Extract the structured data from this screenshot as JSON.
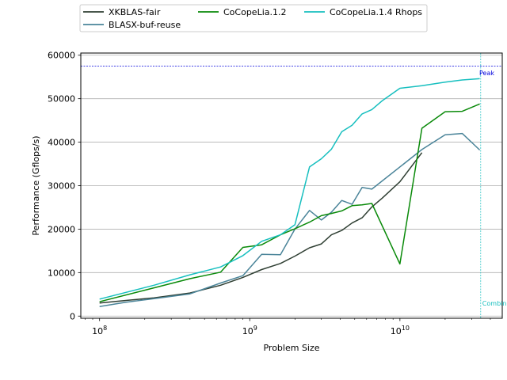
{
  "chart_data": {
    "type": "line",
    "title": "",
    "xlabel": "Problem Size",
    "ylabel": "Performance (Gflops/s)",
    "xscale": "log",
    "xlim": [
      75000000,
      48000000000
    ],
    "ylim": [
      -500,
      60500
    ],
    "grid": {
      "y": true,
      "x": false
    },
    "legend_placement": "top",
    "x_ticks": [
      {
        "value": 100000000,
        "base": "10",
        "exp": "8"
      },
      {
        "value": 1000000000,
        "base": "10",
        "exp": "9"
      },
      {
        "value": 10000000000,
        "base": "10",
        "exp": "10"
      }
    ],
    "y_ticks": [
      0,
      10000,
      20000,
      30000,
      40000,
      50000,
      60000
    ],
    "series": [
      {
        "name": "XKBLAS-fair",
        "color": "#2f3f33",
        "x": [
          100000000,
          150000000,
          230000000,
          400000000,
          640000000,
          900000000,
          1200000000,
          1600000000,
          2000000000,
          2500000000,
          3000000000,
          3500000000,
          4100000000,
          4800000000,
          5600000000,
          6500000000,
          7600000000,
          10000000000,
          14000000000
        ],
        "y": [
          3000,
          3600,
          4200,
          5300,
          7100,
          8900,
          10700,
          12100,
          13800,
          15700,
          16600,
          18700,
          19700,
          21400,
          22600,
          25100,
          27100,
          30900,
          37600
        ]
      },
      {
        "name": "BLASX-buf-reuse",
        "color": "#4a8499",
        "x": [
          100000000,
          150000000,
          230000000,
          400000000,
          640000000,
          900000000,
          1200000000,
          1600000000,
          2000000000,
          2500000000,
          3000000000,
          3500000000,
          4100000000,
          4800000000,
          5600000000,
          6500000000,
          14000000000,
          20000000000,
          26000000000,
          34000000000
        ],
        "y": [
          2200,
          3200,
          4000,
          5100,
          7600,
          9300,
          14200,
          14100,
          20000,
          24300,
          22100,
          23900,
          26600,
          25700,
          29600,
          29200,
          38300,
          41700,
          42000,
          38200
        ]
      },
      {
        "name": "CoCopeLia.1.2",
        "color": "#0a8a0a",
        "x": [
          100000000,
          230000000,
          400000000,
          640000000,
          900000000,
          1200000000,
          1600000000,
          2000000000,
          2500000000,
          3000000000,
          3500000000,
          4100000000,
          4800000000,
          5600000000,
          6500000000,
          10000000000,
          14000000000,
          20000000000,
          26000000000,
          34000000000
        ],
        "y": [
          3300,
          6500,
          8600,
          10100,
          15800,
          16400,
          18700,
          20100,
          21600,
          23100,
          23600,
          24200,
          25400,
          25600,
          25900,
          12000,
          43200,
          47000,
          47100,
          48800
        ]
      },
      {
        "name": "CoCopeLia.1.4 Rhops",
        "color": "#17bfbf",
        "x": [
          100000000,
          230000000,
          400000000,
          640000000,
          900000000,
          1200000000,
          1600000000,
          2000000000,
          2500000000,
          3000000000,
          3500000000,
          4100000000,
          4800000000,
          5600000000,
          6500000000,
          7600000000,
          10000000000,
          14000000000,
          20000000000,
          26000000000,
          34000000000
        ],
        "y": [
          3900,
          7100,
          9500,
          11300,
          13900,
          17200,
          18700,
          21000,
          34300,
          36200,
          38400,
          42400,
          43900,
          46500,
          47500,
          49500,
          52400,
          53000,
          53800,
          54300,
          54600
        ]
      }
    ],
    "annotations": [
      {
        "type": "hline",
        "y": 57500,
        "label": "Peak",
        "color": "#0000dd",
        "label_y": 55000
      },
      {
        "type": "vline",
        "x": 34500000000,
        "label": "Combined",
        "color": "#17bfbf",
        "label_y": 3000
      }
    ]
  }
}
